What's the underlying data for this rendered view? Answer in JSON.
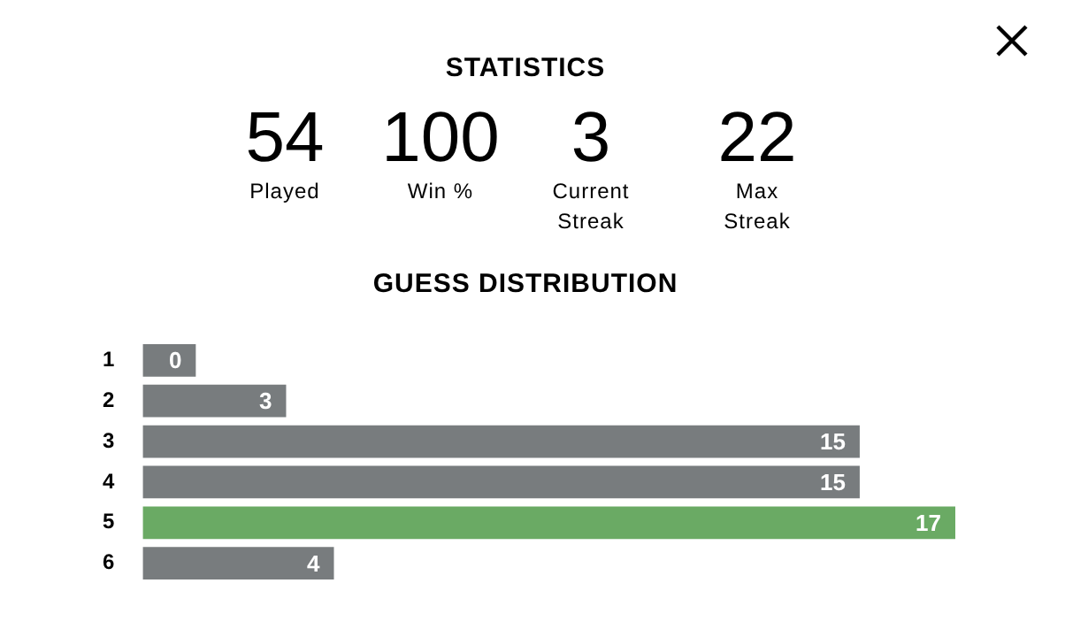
{
  "chart_data": [
    {
      "type": "other",
      "title": "STATISTICS",
      "categories": [
        "Played",
        "Win %",
        "Current Streak",
        "Max Streak"
      ],
      "values": [
        54,
        100,
        3,
        22
      ],
      "data_labels": true
    },
    {
      "type": "bar",
      "title": "GUESS DISTRIBUTION",
      "orientation": "horizontal",
      "categories": [
        "1",
        "2",
        "3",
        "4",
        "5",
        "6"
      ],
      "values": [
        0,
        3,
        15,
        15,
        17,
        4
      ],
      "colors": [
        "#787c7e",
        "#787c7e",
        "#787c7e",
        "#787c7e",
        "#6aaa64",
        "#787c7e"
      ],
      "data_labels": true
    }
  ]
}
